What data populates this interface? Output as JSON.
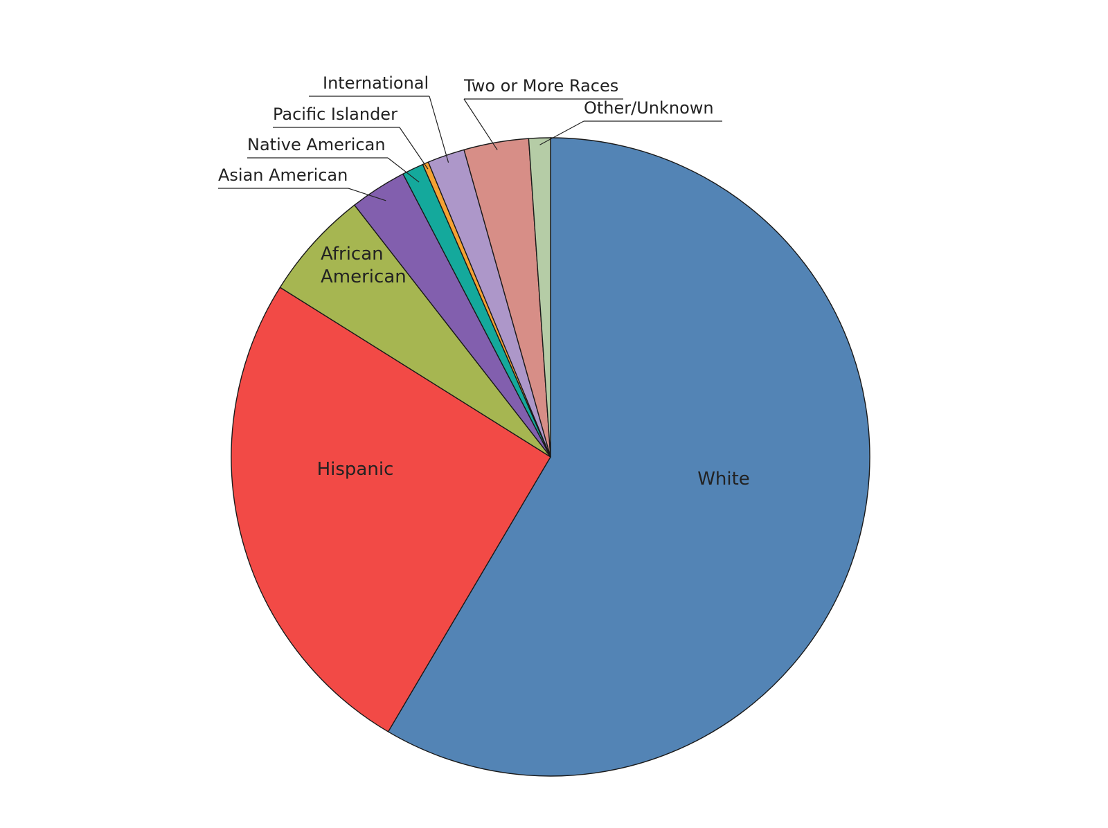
{
  "chart_data": {
    "type": "pie",
    "start": "12 o'clock",
    "direction": "clockwise",
    "slices": [
      {
        "label": "White",
        "value": 58.9,
        "color": "#5384b5"
      },
      {
        "label": "Hispanic",
        "value": 25.6,
        "color": "#f24a46"
      },
      {
        "label": "African American",
        "value": 5.6,
        "color": "#a6b651"
      },
      {
        "label": "Asian American",
        "value": 2.9,
        "color": "#825fae"
      },
      {
        "label": "Native American",
        "value": 1.1,
        "color": "#14a99c"
      },
      {
        "label": "Pacific Islander",
        "value": 0.3,
        "color": "#f5a233"
      },
      {
        "label": "International",
        "value": 1.9,
        "color": "#ad97c9"
      },
      {
        "label": "Two or More Races",
        "value": 3.3,
        "color": "#d78e87"
      },
      {
        "label": "Other/Unknown",
        "value": 1.1,
        "color": "#b5cca6"
      }
    ],
    "legend": "none (direct slice labels)"
  }
}
